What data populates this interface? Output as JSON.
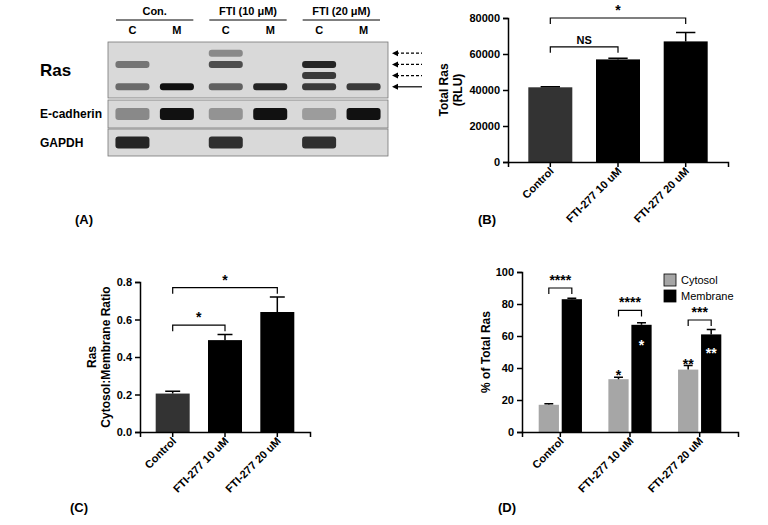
{
  "blot": {
    "panel": "(A)",
    "groups": [
      {
        "label": "Con.",
        "lanes": [
          "C",
          "M"
        ]
      },
      {
        "label": "FTI (10 μM)",
        "lanes": [
          "C",
          "M"
        ]
      },
      {
        "label": "FTI (20 μM)",
        "lanes": [
          "C",
          "M"
        ]
      }
    ],
    "rows": [
      {
        "label": "Ras",
        "bands": [
          [
            0,
            0.5,
            0,
            0.55
          ],
          [
            0,
            0,
            0,
            1
          ],
          [
            0.4,
            0.7,
            0,
            0.6
          ],
          [
            0,
            0,
            0,
            0.9
          ],
          [
            0,
            0.9,
            0.8,
            0.8
          ],
          [
            0,
            0,
            0,
            0.8
          ]
        ]
      },
      {
        "label": "E-cadherin",
        "bands": [
          [
            0.4
          ],
          [
            1
          ],
          [
            0.35
          ],
          [
            1
          ],
          [
            0.3
          ],
          [
            1
          ]
        ]
      },
      {
        "label": "GAPDH",
        "bands": [
          [
            0.9
          ],
          [
            0
          ],
          [
            0.85
          ],
          [
            0
          ],
          [
            0.85
          ],
          [
            0
          ]
        ]
      }
    ]
  },
  "chart_data": [
    {
      "type": "bar",
      "panel": "(B)",
      "y_label": [
        "Total Ras",
        "(RLU)"
      ],
      "categories": [
        "Control",
        "FTI-277 10 uM",
        "FTI-277 20 uM"
      ],
      "values": [
        41500,
        57000,
        67000
      ],
      "errors": [
        300,
        600,
        5000
      ],
      "colors": [
        "#333333",
        "#000000",
        "#000000"
      ],
      "ylim": [
        0,
        80000
      ],
      "yticks": [
        0,
        20000,
        40000,
        60000,
        80000
      ],
      "annotations": [
        {
          "text": "NS",
          "from": "Control",
          "to": "FTI-277 10 uM",
          "y": 64000
        },
        {
          "text": "*",
          "from": "Control",
          "to": "FTI-277 20 uM",
          "y": 80000
        }
      ]
    },
    {
      "type": "bar",
      "panel": "(C)",
      "y_label": [
        "Ras",
        "Cytosol:Membrane Ratio"
      ],
      "categories": [
        "Control",
        "FTI-277 10 uM",
        "FTI-277 20 uM"
      ],
      "values": [
        0.205,
        0.49,
        0.64
      ],
      "errors": [
        0.012,
        0.03,
        0.08
      ],
      "colors": [
        "#333333",
        "#000000",
        "#000000"
      ],
      "ylim": [
        0,
        0.8
      ],
      "yticks": [
        {
          "value": 0,
          "label": "0.0"
        },
        0.2,
        0.4,
        0.6,
        0.8
      ],
      "annotations": [
        {
          "text": "*",
          "from": "Control",
          "to": "FTI-277 10 uM",
          "y": 0.57
        },
        {
          "text": "*",
          "from": "Control",
          "to": "FTI-277 20 uM",
          "y": 0.77
        }
      ]
    },
    {
      "type": "bar",
      "panel": "(D)",
      "y_label": [
        "% of Total Ras"
      ],
      "categories": [
        "Control",
        "FTI-277 10 uM",
        "FTI-277 20 uM"
      ],
      "series": [
        {
          "name": "Cytosol",
          "color": "#a6a6a6",
          "values": [
            17,
            33,
            39
          ],
          "errors": [
            0.6,
            1.2,
            2.5
          ]
        },
        {
          "name": "Membrane",
          "color": "#000000",
          "values": [
            83,
            67,
            61
          ],
          "errors": [
            0.6,
            1.3,
            3
          ]
        }
      ],
      "ylim": [
        0,
        100
      ],
      "yticks": [
        0,
        20,
        40,
        60,
        80,
        100
      ],
      "legend": "top-right",
      "annotations": [
        {
          "text": "****",
          "category": "Control",
          "y": 90
        },
        {
          "text": "****",
          "category": "FTI-277 10 uM",
          "y": 76
        },
        {
          "text": "***",
          "category": "FTI-277 20 uM",
          "y": 70
        }
      ],
      "bar_annotations": [
        {
          "text": "*",
          "category": "FTI-277 10 uM",
          "series": "Cytosol",
          "y": 36
        },
        {
          "text": "*",
          "category": "FTI-277 10 uM",
          "series": "Membrane",
          "y": 55
        },
        {
          "text": "**",
          "category": "FTI-277 20 uM",
          "series": "Cytosol",
          "y": 43
        },
        {
          "text": "**",
          "category": "FTI-277 20 uM",
          "series": "Membrane",
          "y": 50
        }
      ]
    }
  ]
}
